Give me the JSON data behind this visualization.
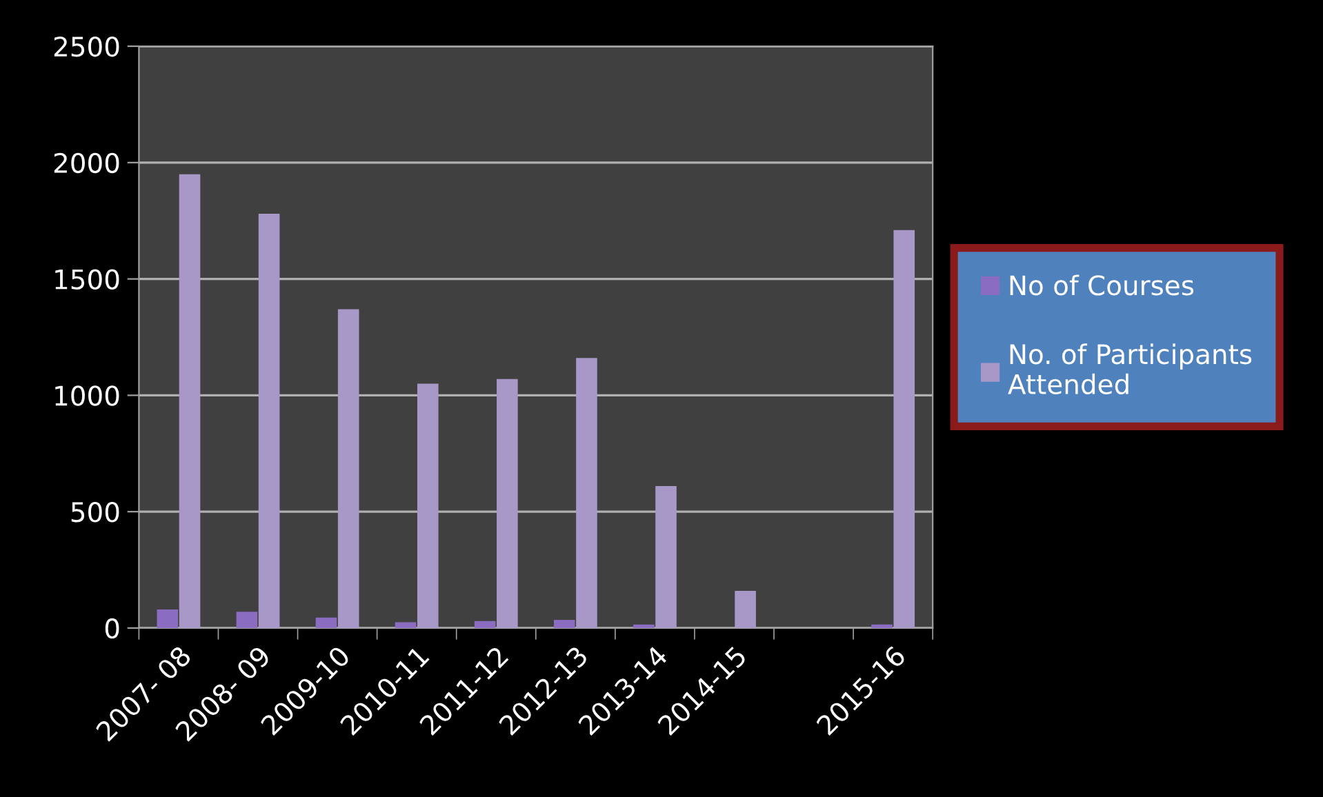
{
  "chart_data": {
    "type": "bar",
    "categories": [
      "2007- 08",
      "2008- 09",
      "2009-10",
      "2010-11",
      "2011-12",
      "2012-13",
      "2013-14",
      "2014-15",
      null,
      "2015-16"
    ],
    "series": [
      {
        "name": "No of Courses",
        "color": "#8a6cc0",
        "values": [
          80,
          70,
          45,
          25,
          30,
          35,
          15,
          null,
          null,
          15
        ]
      },
      {
        "name": "No. of Participants\nAttended",
        "color": "#a898c8",
        "values": [
          1950,
          1780,
          1370,
          1050,
          1070,
          1160,
          610,
          160,
          null,
          1710
        ]
      }
    ],
    "ylim": [
      0,
      2500
    ],
    "yticks": [
      0,
      500,
      1000,
      1500,
      2000,
      2500
    ],
    "grid": "y",
    "legend": "right"
  }
}
